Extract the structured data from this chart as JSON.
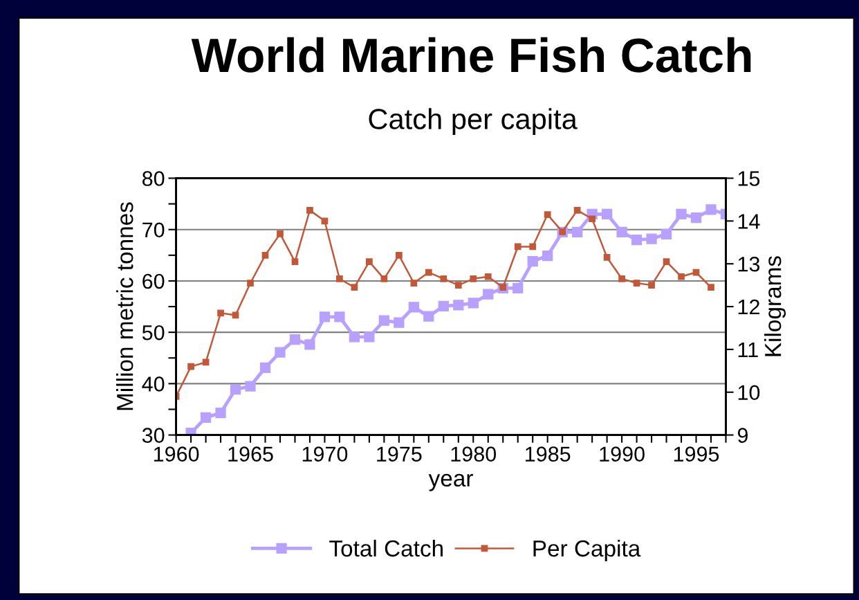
{
  "chart_data": {
    "type": "line",
    "title": "World Marine Fish Catch",
    "subtitle": "Catch per capita",
    "xlabel": "year",
    "ylabel": "Million metric tonnes",
    "y2label": "Kilograms",
    "x": [
      1960,
      1961,
      1962,
      1963,
      1964,
      1965,
      1966,
      1967,
      1968,
      1969,
      1970,
      1971,
      1972,
      1973,
      1974,
      1975,
      1976,
      1977,
      1978,
      1979,
      1980,
      1981,
      1982,
      1983,
      1984,
      1985,
      1986,
      1987,
      1988,
      1989,
      1990,
      1991,
      1992,
      1993,
      1994,
      1995,
      1996,
      1997
    ],
    "series": [
      {
        "name": "Total Catch",
        "color": "#b8a0ff",
        "values": [
          null,
          30.4,
          33.4,
          34.3,
          38.9,
          39.5,
          43.1,
          46.1,
          48.6,
          47.6,
          53.0,
          53.0,
          49.1,
          49.1,
          52.3,
          51.9,
          54.9,
          53.1,
          55.1,
          55.3,
          55.7,
          57.4,
          58.6,
          58.6,
          63.8,
          64.9,
          69.5,
          69.5,
          73.0,
          73.0,
          69.5,
          68.0,
          68.2,
          69.1,
          73.0,
          72.3,
          73.9,
          73.0
        ]
      },
      {
        "name": "Per Capita",
        "color": "#c0583a",
        "axis": "y2",
        "values": [
          9.9,
          10.6,
          10.7,
          11.85,
          11.8,
          12.55,
          13.2,
          13.7,
          13.05,
          14.25,
          14.0,
          12.65,
          12.45,
          13.05,
          12.65,
          13.2,
          12.55,
          12.8,
          12.65,
          12.5,
          12.65,
          12.7,
          12.45,
          13.4,
          13.4,
          14.15,
          13.75,
          14.25,
          14.05,
          13.15,
          12.65,
          12.55,
          12.5,
          13.05,
          12.7,
          12.8,
          12.45,
          null
        ]
      }
    ],
    "xlim": [
      1960,
      1997
    ],
    "xticks": [
      1960,
      {
        "value": 1961,
        "label": null
      },
      {
        "value": 1962,
        "label": null
      },
      {
        "value": 1963,
        "label": null
      },
      {
        "value": 1964,
        "label": null
      },
      1965,
      {
        "value": 1966,
        "label": null
      },
      {
        "value": 1967,
        "label": null
      },
      {
        "value": 1968,
        "label": null
      },
      {
        "value": 1969,
        "label": null
      },
      1970,
      {
        "value": 1971,
        "label": null
      },
      {
        "value": 1972,
        "label": null
      },
      {
        "value": 1973,
        "label": null
      },
      {
        "value": 1974,
        "label": null
      },
      1975,
      {
        "value": 1976,
        "label": null
      },
      {
        "value": 1977,
        "label": null
      },
      {
        "value": 1978,
        "label": null
      },
      {
        "value": 1979,
        "label": null
      },
      1980,
      {
        "value": 1981,
        "label": null
      },
      {
        "value": 1982,
        "label": null
      },
      {
        "value": 1983,
        "label": null
      },
      {
        "value": 1984,
        "label": null
      },
      1985,
      {
        "value": 1986,
        "label": null
      },
      {
        "value": 1987,
        "label": null
      },
      {
        "value": 1988,
        "label": null
      },
      {
        "value": 1989,
        "label": null
      },
      1990,
      {
        "value": 1991,
        "label": null
      },
      {
        "value": 1992,
        "label": null
      },
      {
        "value": 1993,
        "label": null
      },
      {
        "value": 1994,
        "label": null
      },
      1995,
      {
        "value": 1996,
        "label": null
      },
      {
        "value": 1997,
        "label": null
      }
    ],
    "ylim": [
      30,
      80
    ],
    "yticks": [
      30,
      {
        "value": 35,
        "label": null
      },
      40,
      {
        "value": 45,
        "label": null
      },
      50,
      {
        "value": 55,
        "label": null
      },
      60,
      {
        "value": 65,
        "label": null
      },
      70,
      {
        "value": 75,
        "label": null
      },
      80
    ],
    "y2lim": [
      9,
      15
    ],
    "y2ticks": [
      9,
      10,
      11,
      12,
      13,
      14,
      15
    ],
    "grid": "y",
    "legend": "bottom",
    "marker": "square",
    "line_style": "solid"
  }
}
